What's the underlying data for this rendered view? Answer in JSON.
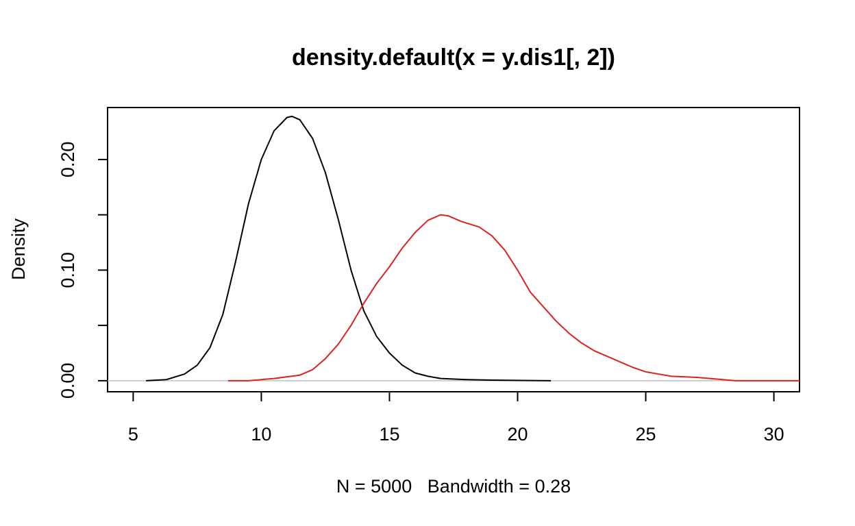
{
  "chart_data": {
    "type": "line",
    "title": "density.default(x = y.dis1[, 2])",
    "xlabel": "N = 5000   Bandwidth = 0.28",
    "ylabel": "Density",
    "xlim": [
      4,
      31
    ],
    "ylim": [
      -0.01,
      0.247
    ],
    "xticks": [
      5,
      10,
      15,
      20,
      25,
      30
    ],
    "xtick_labels": [
      "5",
      "10",
      "15",
      "20",
      "25",
      "30"
    ],
    "yticks": [
      0.0,
      0.05,
      0.1,
      0.15,
      0.2
    ],
    "ytick_labels": [
      "0.00",
      "",
      "0.10",
      "",
      "0.20"
    ],
    "grid": false,
    "baseline": 0,
    "series": [
      {
        "color": "#000000",
        "points": [
          [
            5.5,
            0.0
          ],
          [
            6.3,
            0.001
          ],
          [
            7.0,
            0.006
          ],
          [
            7.5,
            0.014
          ],
          [
            8.0,
            0.03
          ],
          [
            8.5,
            0.06
          ],
          [
            9.0,
            0.108
          ],
          [
            9.5,
            0.16
          ],
          [
            10.0,
            0.2
          ],
          [
            10.5,
            0.226
          ],
          [
            11.0,
            0.238
          ],
          [
            11.2,
            0.239
          ],
          [
            11.5,
            0.236
          ],
          [
            12.0,
            0.219
          ],
          [
            12.5,
            0.188
          ],
          [
            13.0,
            0.146
          ],
          [
            13.5,
            0.1
          ],
          [
            14.0,
            0.063
          ],
          [
            14.5,
            0.04
          ],
          [
            15.0,
            0.025
          ],
          [
            15.5,
            0.014
          ],
          [
            16.0,
            0.007
          ],
          [
            16.5,
            0.004
          ],
          [
            17.0,
            0.002
          ],
          [
            18.0,
            0.001
          ],
          [
            19.0,
            0.0005
          ],
          [
            21.3,
            0.0
          ]
        ]
      },
      {
        "color": "#e0201f",
        "points": [
          [
            8.7,
            0.0
          ],
          [
            9.5,
            0.0
          ],
          [
            10.5,
            0.002
          ],
          [
            11.5,
            0.005
          ],
          [
            12.0,
            0.01
          ],
          [
            12.5,
            0.02
          ],
          [
            13.0,
            0.033
          ],
          [
            13.5,
            0.05
          ],
          [
            14.0,
            0.07
          ],
          [
            14.5,
            0.088
          ],
          [
            15.0,
            0.103
          ],
          [
            15.5,
            0.12
          ],
          [
            16.0,
            0.134
          ],
          [
            16.5,
            0.145
          ],
          [
            17.0,
            0.15
          ],
          [
            17.3,
            0.149
          ],
          [
            17.8,
            0.144
          ],
          [
            18.5,
            0.139
          ],
          [
            19.0,
            0.131
          ],
          [
            19.5,
            0.118
          ],
          [
            20.0,
            0.1
          ],
          [
            20.5,
            0.08
          ],
          [
            21.0,
            0.067
          ],
          [
            21.5,
            0.054
          ],
          [
            22.0,
            0.043
          ],
          [
            22.5,
            0.034
          ],
          [
            23.0,
            0.027
          ],
          [
            23.5,
            0.022
          ],
          [
            24.0,
            0.017
          ],
          [
            24.5,
            0.012
          ],
          [
            25.0,
            0.008
          ],
          [
            25.5,
            0.006
          ],
          [
            26.0,
            0.004
          ],
          [
            27.0,
            0.003
          ],
          [
            27.5,
            0.002
          ],
          [
            28.5,
            0.0
          ],
          [
            31.0,
            0.0
          ]
        ]
      }
    ]
  }
}
